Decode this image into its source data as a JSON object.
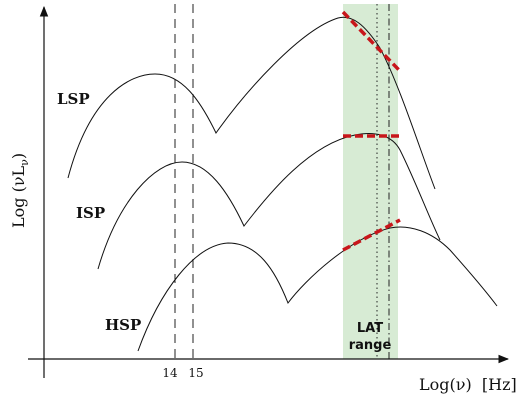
{
  "axes": {
    "x_label": "Log(ν)  [Hz]",
    "y_label": "Log (νL",
    "y_label_sub": "ν",
    "y_label_close": ")",
    "tick_labels": [
      "14",
      "15"
    ]
  },
  "curves": [
    {
      "label": "LSP"
    },
    {
      "label": "ISP"
    },
    {
      "label": "HSP"
    }
  ],
  "band": {
    "label_line1": "LAT",
    "label_line2": "range",
    "fill_color": "#d7ebd4"
  },
  "colors": {
    "curve": "#111111",
    "axis": "#111111",
    "red_dash": "#c8161b"
  }
}
